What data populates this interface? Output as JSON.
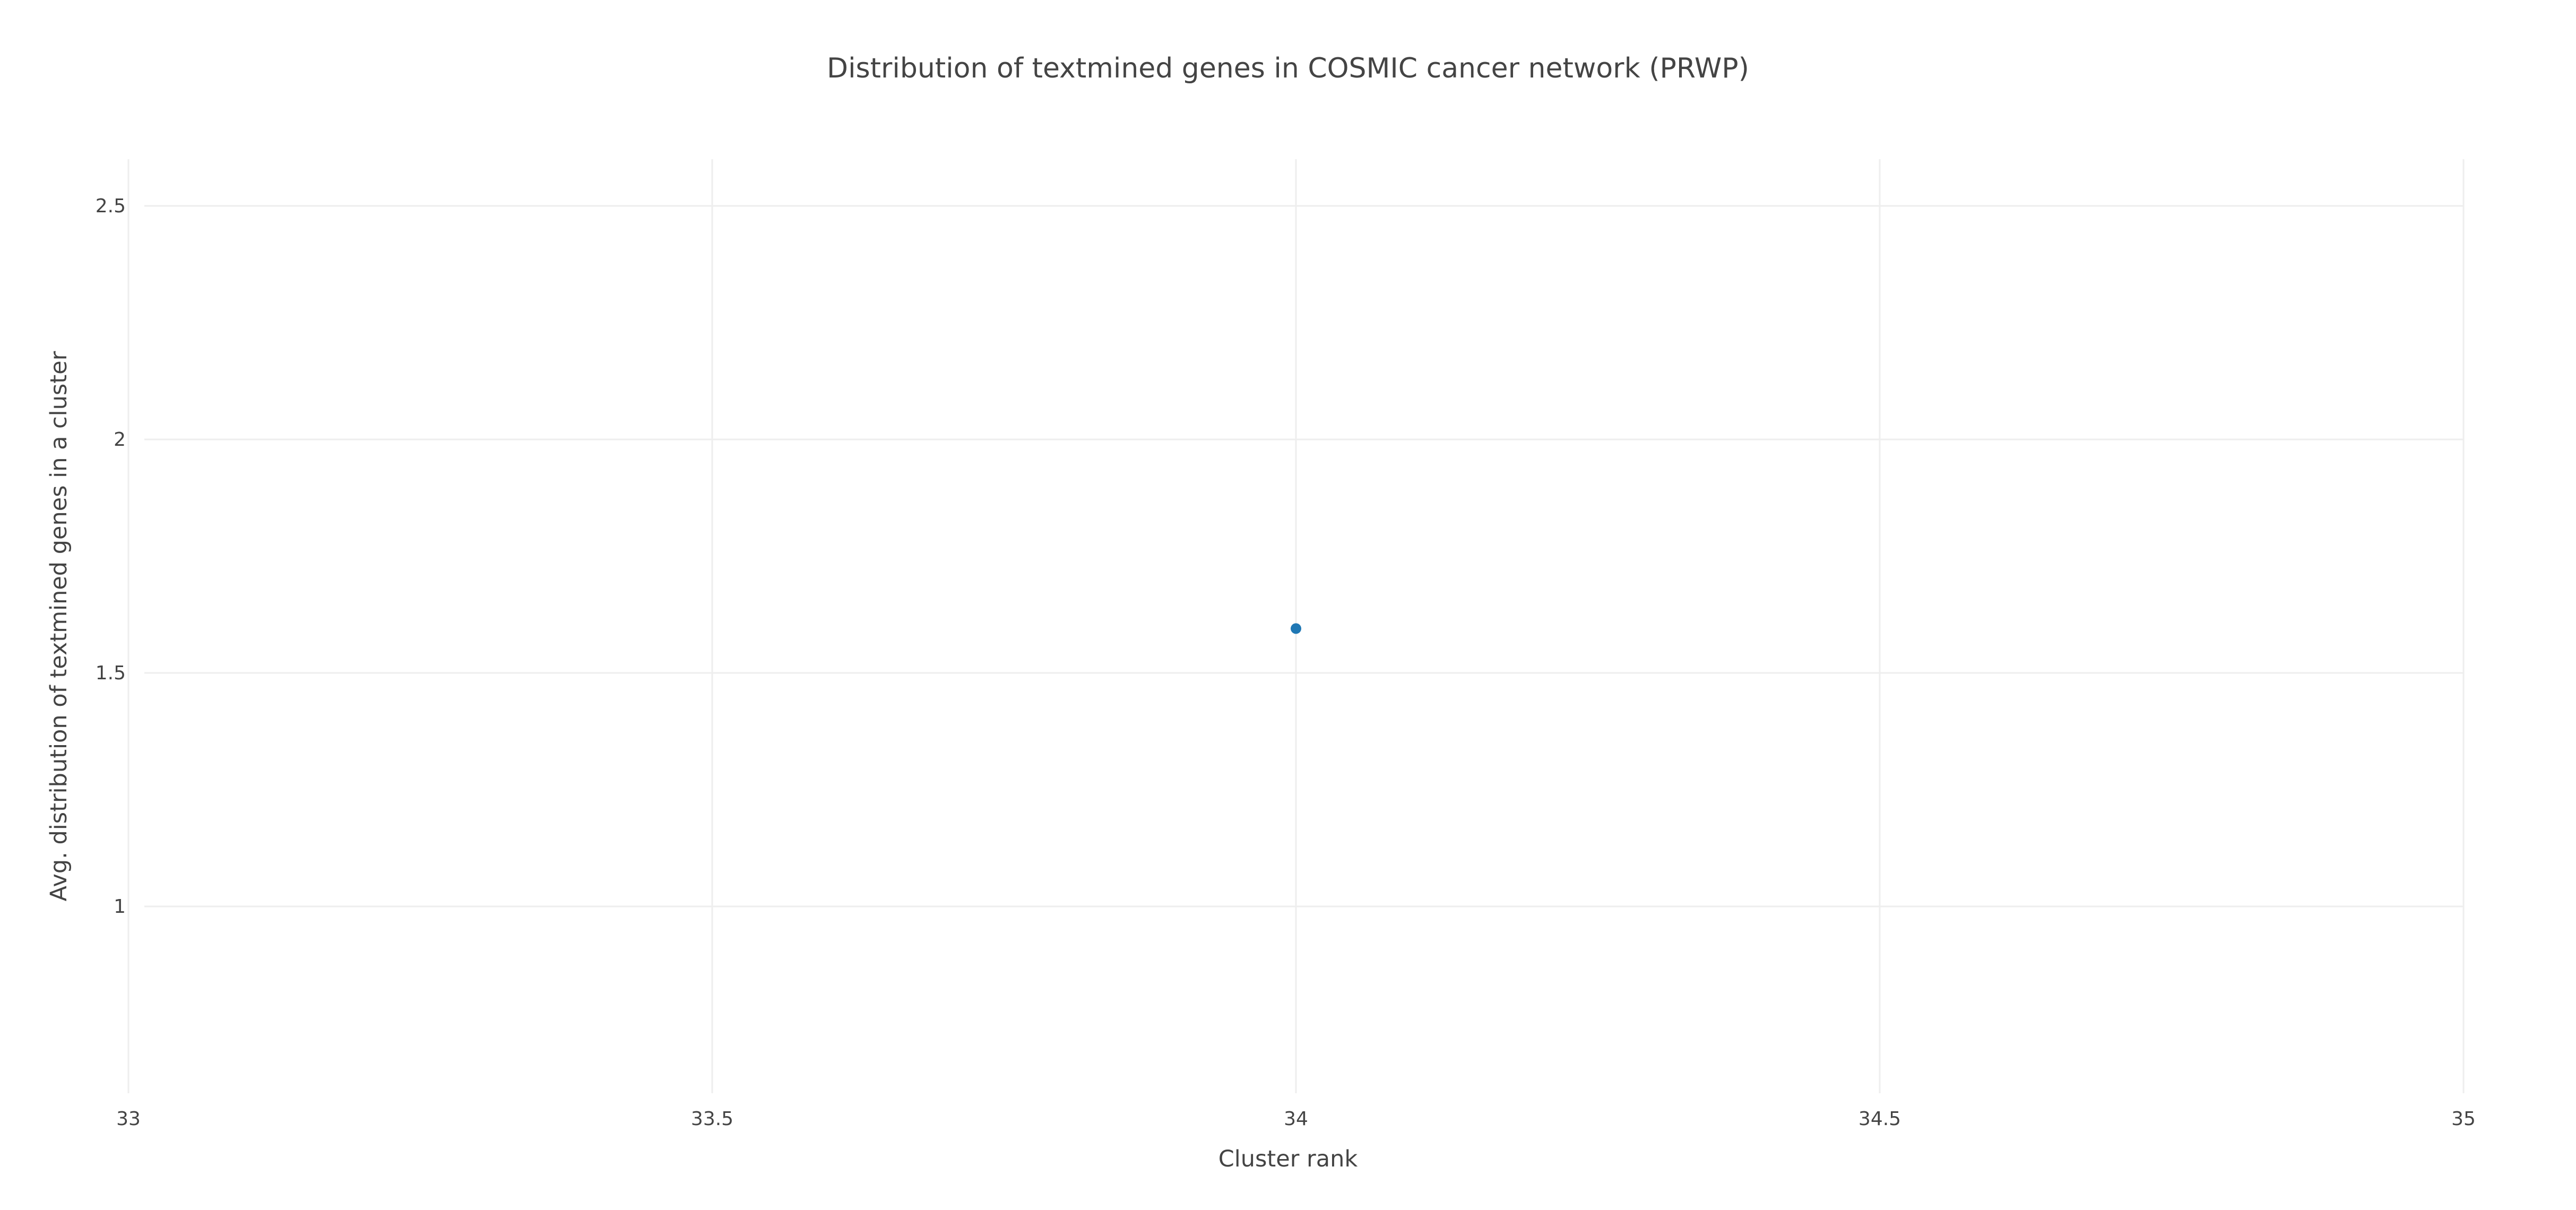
{
  "chart_data": {
    "type": "scatter",
    "title": "Distribution of textmined genes in COSMIC cancer network (PRWP)",
    "xlabel": "Cluster rank",
    "ylabel": "Avg. distribution of textmined genes in a cluster",
    "xlim": [
      33,
      35
    ],
    "ylim": [
      0.6,
      2.6
    ],
    "x_ticks": [
      {
        "value": 33,
        "label": "33"
      },
      {
        "value": 33.5,
        "label": "33.5"
      },
      {
        "value": 34,
        "label": "34"
      },
      {
        "value": 34.5,
        "label": "34.5"
      },
      {
        "value": 35,
        "label": "35"
      }
    ],
    "y_ticks": [
      {
        "value": 1,
        "label": "1"
      },
      {
        "value": 1.5,
        "label": "1.5"
      },
      {
        "value": 2,
        "label": "2"
      },
      {
        "value": 2.5,
        "label": "2.5"
      }
    ],
    "grid": true,
    "legend": "none",
    "marker_color": "#1f77b4",
    "series": [
      {
        "x": [
          34
        ],
        "y": [
          1.595
        ]
      }
    ]
  }
}
